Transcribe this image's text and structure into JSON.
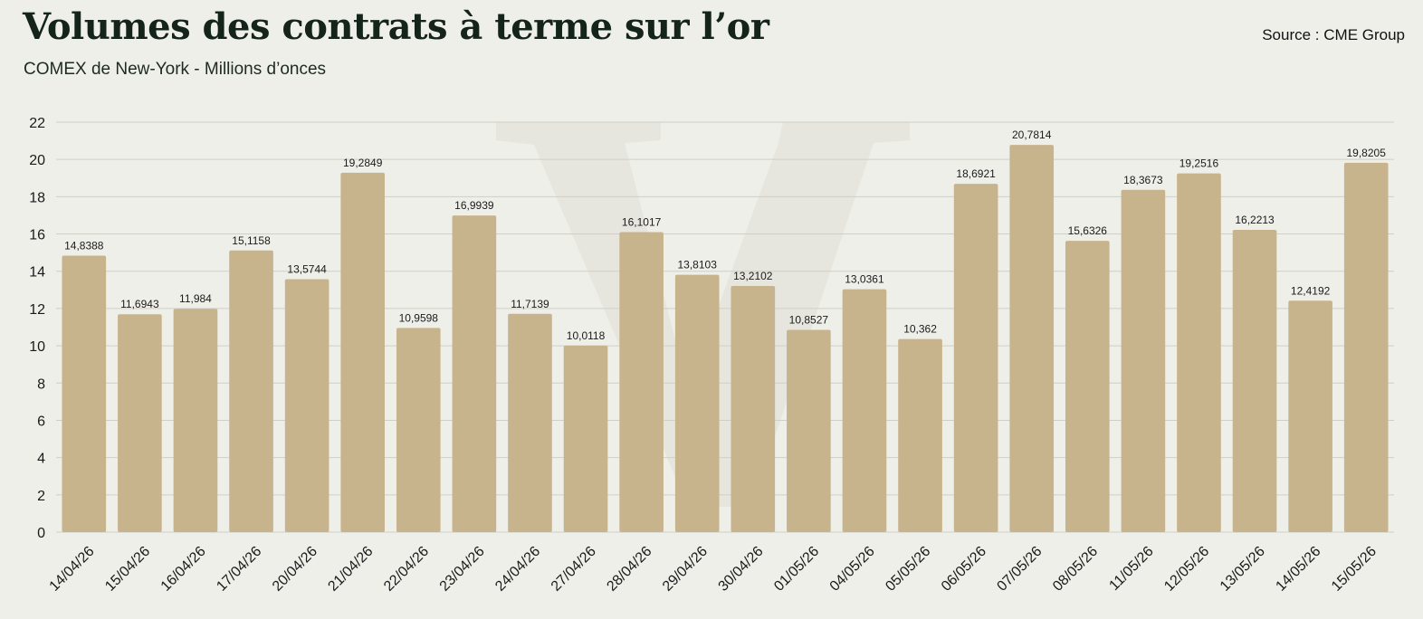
{
  "header": {
    "title": "Volumes des contrats à terme sur l’or",
    "subtitle": "COMEX de New-York - Millions d’onces",
    "source": "Source : CME Group"
  },
  "colors": {
    "bar": "#c8b48c",
    "grid": "#cfcfc8",
    "background": "#efefea",
    "watermark": "#e4e4de"
  },
  "chart_data": {
    "type": "bar",
    "title": "Volumes des contrats à terme sur l’or",
    "subtitle": "COMEX de New-York - Millions d’onces",
    "xlabel": "",
    "ylabel": "",
    "ylim": [
      0,
      22
    ],
    "yticks": [
      0,
      2,
      4,
      6,
      8,
      10,
      12,
      14,
      16,
      18,
      20,
      22
    ],
    "grid": true,
    "legend": "none",
    "categories": [
      "14/04/26",
      "15/04/26",
      "16/04/26",
      "17/04/26",
      "20/04/26",
      "21/04/26",
      "22/04/26",
      "23/04/26",
      "24/04/26",
      "27/04/26",
      "28/04/26",
      "29/04/26",
      "30/04/26",
      "01/05/26",
      "04/05/26",
      "05/05/26",
      "06/05/26",
      "07/05/26",
      "08/05/26",
      "11/05/26",
      "12/05/26",
      "13/05/26",
      "14/05/26",
      "15/05/26"
    ],
    "values": [
      14.8388,
      11.6943,
      11.984,
      15.1158,
      13.5744,
      19.2849,
      10.9598,
      16.9939,
      11.7139,
      10.0118,
      16.1017,
      13.8103,
      13.2102,
      10.8527,
      13.0361,
      10.362,
      18.6921,
      20.7814,
      15.6326,
      18.3673,
      19.2516,
      16.2213,
      12.4192,
      19.8205
    ],
    "data_labels": [
      "14,8388",
      "11,6943",
      "11,984",
      "15,1158",
      "13,5744",
      "19,2849",
      "10,9598",
      "16,9939",
      "11,7139",
      "10,0118",
      "16,1017",
      "13,8103",
      "13,2102",
      "10,8527",
      "13,0361",
      "10,362",
      "18,6921",
      "20,7814",
      "15,6326",
      "18,3673",
      "19,2516",
      "16,2213",
      "12,4192",
      "19,8205"
    ]
  }
}
